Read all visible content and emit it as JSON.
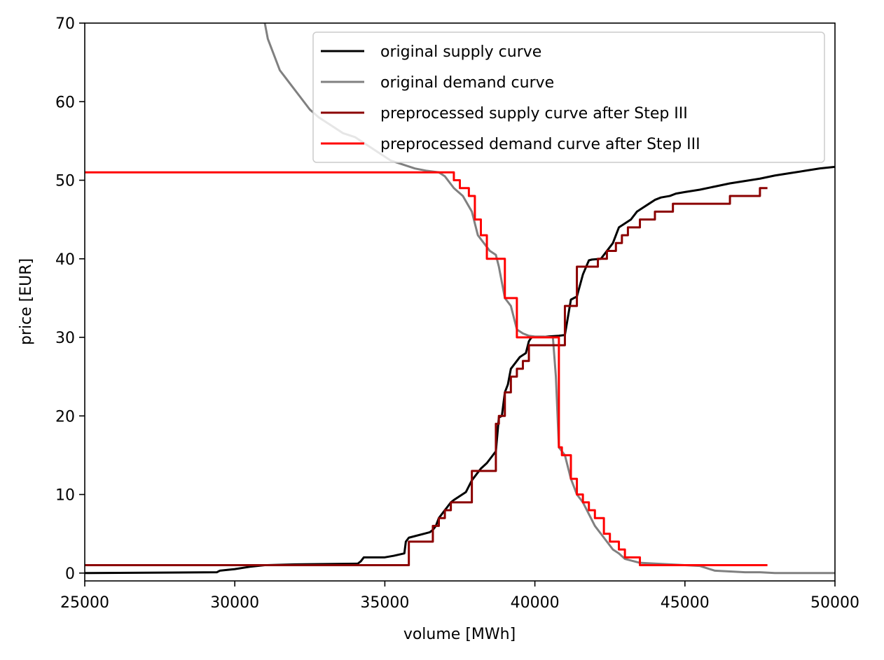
{
  "chart_data": {
    "type": "line",
    "title": "",
    "xlabel": "volume [MWh]",
    "ylabel": "price [EUR]",
    "xlim": [
      25000,
      50000
    ],
    "ylim": [
      -1,
      70
    ],
    "xticks": [
      25000,
      30000,
      35000,
      40000,
      45000,
      50000
    ],
    "yticks": [
      0,
      10,
      20,
      30,
      40,
      50,
      60,
      70
    ],
    "grid": false,
    "legend_position": "top-right",
    "series": [
      {
        "name": "original supply curve",
        "color": "#000000",
        "x": [
          25000,
          29400,
          29500,
          30000,
          30500,
          31000,
          32000,
          34100,
          34200,
          34300,
          35000,
          35300,
          35650,
          35700,
          35800,
          36300,
          36500,
          36600,
          36700,
          36800,
          36900,
          37000,
          37100,
          37200,
          37300,
          37500,
          37700,
          37900,
          38000,
          38100,
          38200,
          38400,
          38600,
          38700,
          38800,
          38900,
          39000,
          39100,
          39200,
          39300,
          39400,
          39500,
          39700,
          39800,
          39850,
          39900,
          40000,
          40800,
          41000,
          41200,
          41300,
          41400,
          41600,
          41800,
          41900,
          42200,
          42400,
          42600,
          42700,
          42800,
          43000,
          43200,
          43400,
          43600,
          43800,
          44000,
          44200,
          44500,
          44700,
          45000,
          45500,
          46000,
          46500,
          47000,
          47500,
          48000,
          48500,
          49000,
          49500,
          50000
        ],
        "y": [
          0,
          0.1,
          0.3,
          0.5,
          0.8,
          1,
          1.1,
          1.2,
          1.5,
          2,
          2,
          2.2,
          2.5,
          4,
          4.5,
          5,
          5.2,
          5.5,
          6,
          7,
          7.5,
          8,
          8.5,
          9,
          9.3,
          9.8,
          10.3,
          11.8,
          12.3,
          12.8,
          13.3,
          14,
          15,
          15.5,
          19.8,
          20,
          23,
          24,
          26,
          26.5,
          27,
          27.5,
          28,
          29.5,
          29.8,
          30,
          30,
          30.2,
          30.3,
          34.8,
          35,
          35.2,
          38,
          39.8,
          39.9,
          40,
          41,
          42,
          43,
          44,
          44.5,
          45,
          46,
          46.5,
          47,
          47.5,
          47.8,
          48,
          48.3,
          48.5,
          48.8,
          49.2,
          49.6,
          49.9,
          50.2,
          50.6,
          50.9,
          51.2,
          51.5,
          51.7
        ]
      },
      {
        "name": "original demand curve",
        "color": "#808080",
        "x": [
          31000,
          31100,
          31200,
          31300,
          31500,
          31700,
          31900,
          32200,
          32500,
          32800,
          33200,
          33600,
          34000,
          34400,
          34800,
          35200,
          35600,
          36000,
          36400,
          36800,
          37000,
          37300,
          37600,
          37900,
          38100,
          38300,
          38500,
          38700,
          38800,
          39000,
          39200,
          39400,
          39600,
          39800,
          40000,
          40300,
          40600,
          40700,
          40800,
          41000,
          41200,
          41400,
          41600,
          41800,
          42000,
          42200,
          42400,
          42600,
          42800,
          43000,
          43500,
          44000,
          44500,
          45000,
          45500,
          46000,
          46500,
          47000,
          47500,
          48000,
          48500,
          49000,
          50000
        ],
        "y": [
          70,
          68,
          67,
          66,
          64,
          63,
          62,
          60.5,
          59,
          58,
          57,
          56,
          55.5,
          54.5,
          53.5,
          52.5,
          52,
          51.5,
          51.2,
          51,
          50.5,
          49,
          48,
          46,
          43,
          42,
          41,
          40.5,
          39,
          35,
          34,
          31,
          30.5,
          30.2,
          30.1,
          30.1,
          30,
          25,
          16,
          15,
          12,
          10,
          9,
          7.5,
          6,
          5,
          4,
          3,
          2.5,
          1.8,
          1.3,
          1.2,
          1.1,
          1,
          0.9,
          0.3,
          0.2,
          0.1,
          0.1,
          0,
          0,
          0,
          0
        ]
      },
      {
        "name": "preprocessed supply curve after Step III",
        "color": "#8b0000",
        "step": "post",
        "x": [
          25000,
          35650,
          35800,
          36000,
          36300,
          36600,
          36800,
          37000,
          37200,
          37500,
          37900,
          38100,
          38300,
          38700,
          38800,
          39000,
          39200,
          39400,
          39600,
          39800,
          40000,
          40300,
          40600,
          40800,
          41000,
          41400,
          41600,
          41900,
          42100,
          42400,
          42700,
          42900,
          43100,
          43300,
          43500,
          43700,
          44000,
          44300,
          44600,
          44900,
          45300,
          45700,
          46000,
          46500,
          47000,
          47500,
          47750
        ],
        "y": [
          1,
          1,
          4,
          4,
          4,
          6,
          7,
          8,
          9,
          9,
          13,
          13,
          13,
          19,
          20,
          23,
          25,
          26,
          27,
          29,
          29,
          29,
          29,
          29,
          34,
          39,
          39,
          39,
          40,
          41,
          42,
          43,
          44,
          44,
          45,
          45,
          46,
          46,
          47,
          47,
          47,
          47,
          47,
          48,
          48,
          49,
          49
        ]
      },
      {
        "name": "preprocessed demand curve after Step III",
        "color": "#ff0000",
        "step": "post",
        "x": [
          25000,
          37000,
          37300,
          37500,
          37800,
          38000,
          38200,
          38400,
          38700,
          39000,
          39400,
          40700,
          40800,
          40900,
          41000,
          41200,
          41400,
          41600,
          41800,
          42000,
          42300,
          42500,
          42800,
          43000,
          43500,
          44000,
          47750
        ],
        "y": [
          51,
          51,
          50,
          49,
          48,
          45,
          43,
          40,
          40,
          35,
          30,
          30,
          16,
          15,
          15,
          12,
          10,
          9,
          8,
          7,
          5,
          4,
          3,
          2,
          1,
          1,
          1
        ]
      }
    ]
  }
}
